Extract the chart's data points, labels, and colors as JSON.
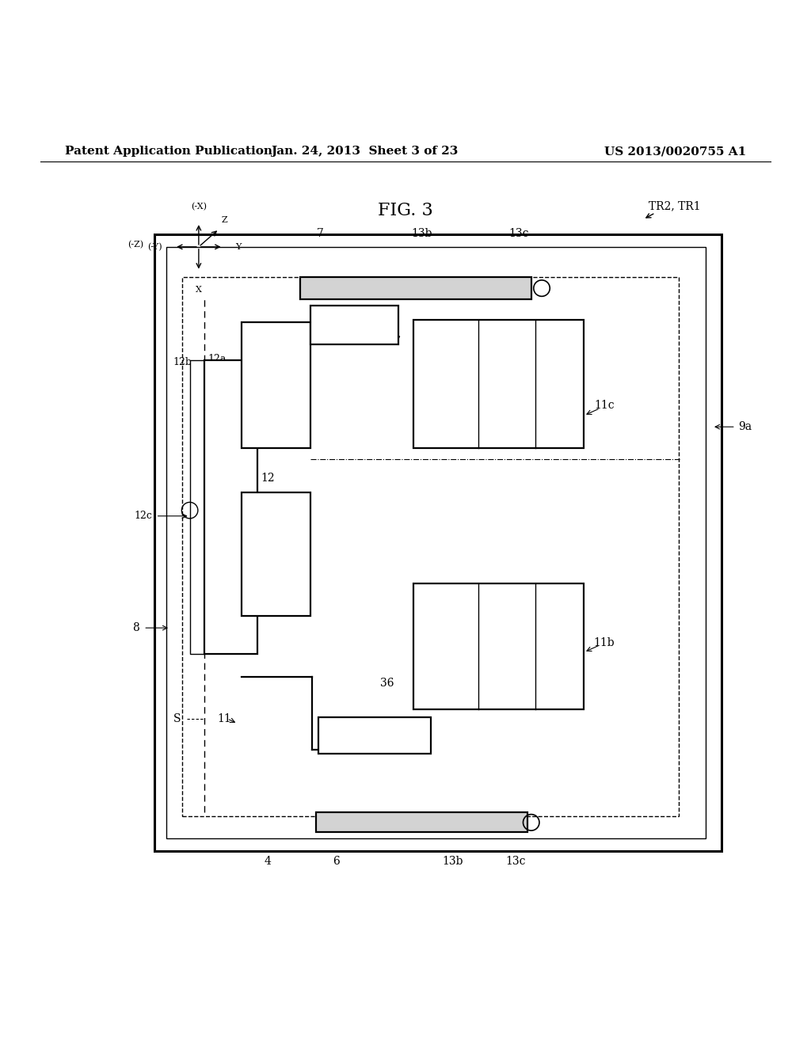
{
  "background_color": "#ffffff",
  "header_left": "Patent Application Publication",
  "header_middle": "Jan. 24, 2013  Sheet 3 of 23",
  "header_right": "US 2013/0020755 A1",
  "fig_title": "FIG. 3",
  "tr_label": "TR2, TR1"
}
